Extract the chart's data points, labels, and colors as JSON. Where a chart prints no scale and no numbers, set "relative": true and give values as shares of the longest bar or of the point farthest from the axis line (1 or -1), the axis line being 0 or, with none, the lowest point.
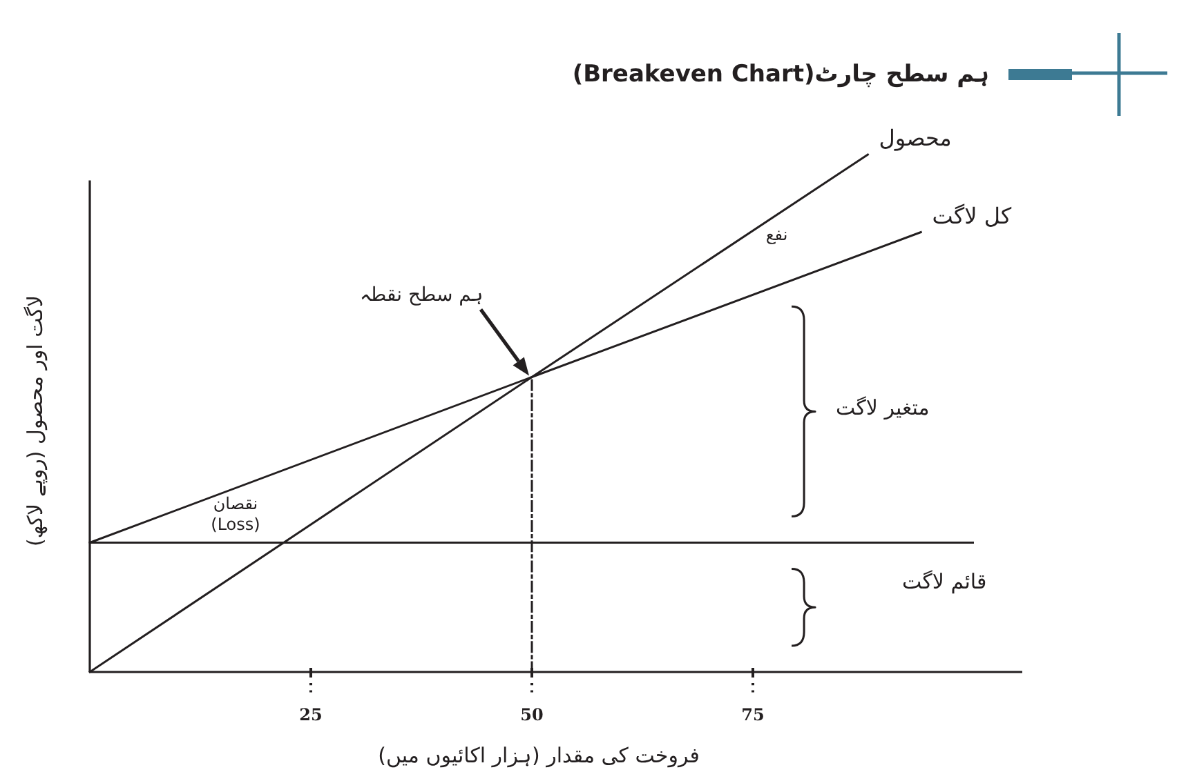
{
  "chart_data": {
    "type": "line",
    "title": "ہم سطح چارٹ(Breakeven Chart)",
    "xlabel": "فروخت کی مقدار (ہزار اکائیوں میں)",
    "ylabel": "لاگت اور محصول (روپے لاکھ)",
    "relative": true,
    "xlim": [
      0,
      105
    ],
    "xticks": [
      25,
      50,
      75
    ],
    "tick_labels": "x",
    "series": [
      {
        "name": "محصول",
        "color": "#231f20",
        "x": [
          0,
          50,
          88
        ],
        "values": [
          0,
          0.57,
          1
        ]
      },
      {
        "name": "کل لاگت",
        "color": "#231f20",
        "x": [
          0,
          50,
          94
        ],
        "values": [
          0.25,
          0.57,
          0.85
        ]
      },
      {
        "color": "#231f20",
        "x": [
          50,
          50
        ],
        "values": [
          0,
          0.57
        ],
        "line_style": "dashed"
      }
    ],
    "ref_lines": [
      {
        "axis": "y",
        "value": 0.25,
        "color": "#231f20"
      }
    ],
    "annotations": [
      "ہم سطح نقطہ",
      "نفع",
      "نقصان (Loss)",
      "متغیر لاگت",
      "قائم لاگت"
    ]
  }
}
